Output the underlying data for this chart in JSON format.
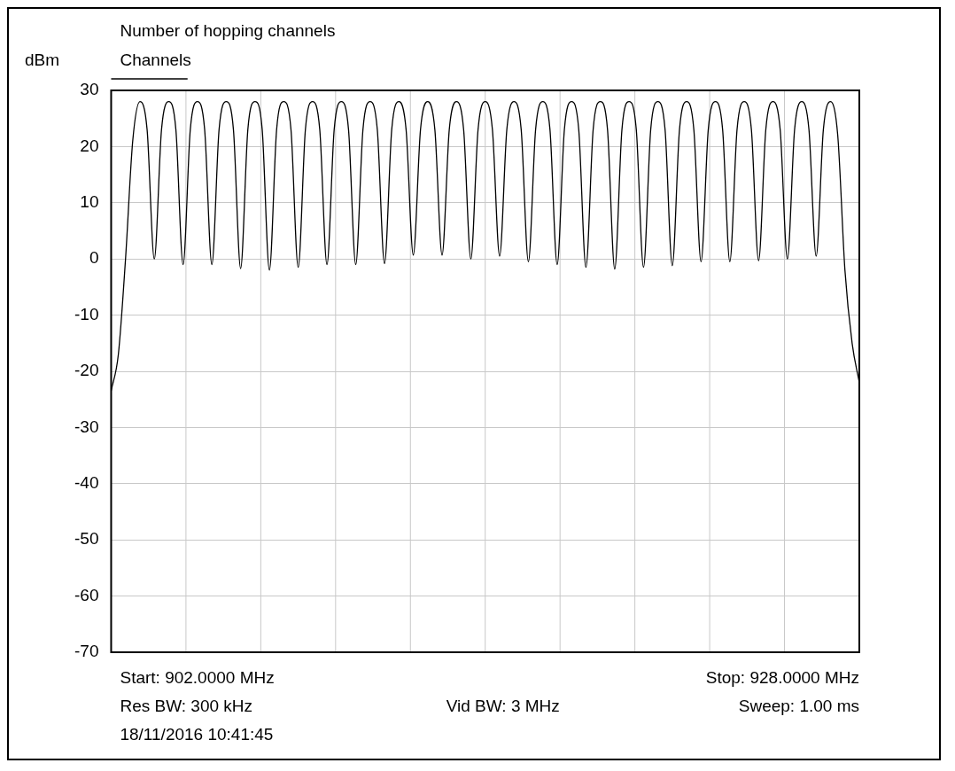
{
  "chart_data": {
    "type": "line",
    "title": "Number of hopping channels",
    "ylabel": "dBm",
    "legend": "top left",
    "grid": true,
    "tick_labels": "y",
    "marker": "none",
    "line_style": "solid",
    "categories": [
      null,
      null,
      null,
      null,
      null,
      null,
      null,
      null,
      null,
      null,
      null,
      null,
      null,
      null,
      null,
      null,
      null,
      null,
      null,
      null,
      null,
      null,
      null,
      null,
      null,
      null,
      null,
      null,
      null,
      null,
      null,
      null,
      null,
      null,
      null,
      null,
      null,
      null,
      null,
      null,
      null,
      null,
      null,
      null,
      null,
      null,
      null,
      null,
      null,
      null,
      null,
      null,
      null,
      null,
      null,
      null,
      null,
      null,
      null,
      null,
      null,
      null,
      null,
      null,
      null,
      null,
      null,
      null,
      null,
      null,
      null,
      null,
      null,
      null,
      null,
      null,
      null,
      null,
      null,
      null,
      null,
      null,
      null,
      null,
      null,
      null,
      null,
      null,
      null,
      null,
      null,
      null,
      null,
      null,
      null,
      null,
      null,
      null,
      null,
      null,
      null,
      null,
      null,
      null,
      null
    ],
    "ylim": [
      -70,
      30
    ],
    "yticks": [
      -70,
      -60,
      -50,
      -40,
      -30,
      -20,
      -10,
      0,
      10,
      20,
      30
    ],
    "annotations": [
      "Start: 902.0000 MHz",
      "Stop: 928.0000 MHz",
      "Res BW: 300 kHz",
      "Vid BW: 3 MHz",
      "Sweep: 1.00 ms",
      "18/11/2016 10:41:45"
    ],
    "series": [
      {
        "name": "Channels",
        "color": "#000000",
        "values": [
          -23.5,
          -17,
          0,
          21,
          28,
          23,
          0,
          23,
          28,
          23,
          -1,
          23,
          28,
          23,
          -1,
          23,
          28,
          23,
          -1.7,
          23,
          28,
          23,
          -2,
          23,
          28,
          23,
          -1.5,
          23,
          28,
          23,
          -1,
          23,
          28,
          23,
          -1,
          23,
          28,
          23,
          -0.8,
          23,
          28,
          23,
          0.7,
          23,
          28,
          23,
          0.7,
          23,
          28,
          23,
          0,
          23,
          28,
          23,
          0.5,
          23,
          28,
          23,
          -0.5,
          23,
          28,
          23,
          -1,
          23,
          28,
          23,
          -1.5,
          23,
          28,
          23,
          -1.8,
          23,
          28,
          23,
          -1.5,
          23,
          28,
          23,
          -1.2,
          23,
          28,
          23,
          -0.5,
          23,
          28,
          23,
          -0.5,
          23,
          28,
          23,
          -0.3,
          23,
          28,
          23,
          0,
          23,
          28,
          23,
          0.5,
          23,
          28,
          22,
          -2,
          -15,
          -22
        ]
      }
    ]
  }
}
